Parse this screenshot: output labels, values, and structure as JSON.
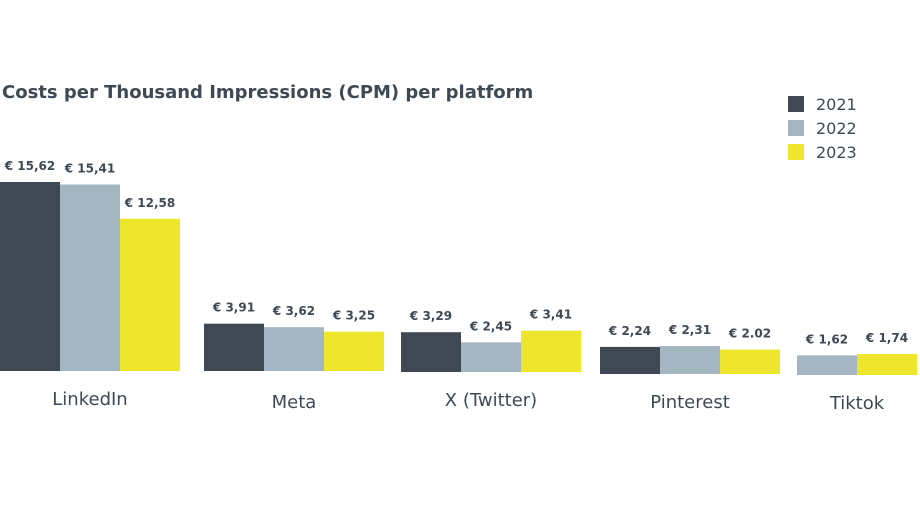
{
  "chart_data": {
    "type": "bar",
    "title": "Costs per Thousand Impressions (CPM) per platform",
    "categories": [
      "LinkedIn",
      "Meta",
      "X (Twitter)",
      "Pinterest",
      "Tiktok"
    ],
    "series": [
      {
        "name": "2021",
        "color": "#3f4954",
        "values": [
          15.62,
          3.91,
          3.29,
          2.24,
          null
        ],
        "labels": [
          "€ 15,62",
          "€ 3,91",
          "€ 3,29",
          "€ 2,24",
          null
        ]
      },
      {
        "name": "2022",
        "color": "#a4b6c2",
        "values": [
          15.41,
          3.62,
          2.45,
          2.31,
          1.62
        ],
        "labels": [
          "€ 15,41",
          "€ 3,62",
          "€ 2,45",
          "€ 2,31",
          "€ 1,62"
        ]
      },
      {
        "name": "2023",
        "color": "#ede62c",
        "values": [
          12.58,
          3.25,
          3.41,
          2.02,
          1.74
        ],
        "labels": [
          "€ 12,58",
          "€ 3,25",
          "€ 3,41",
          "€ 2.02",
          "€ 1,74"
        ]
      }
    ],
    "legend_position": "top-right",
    "grid": false
  }
}
